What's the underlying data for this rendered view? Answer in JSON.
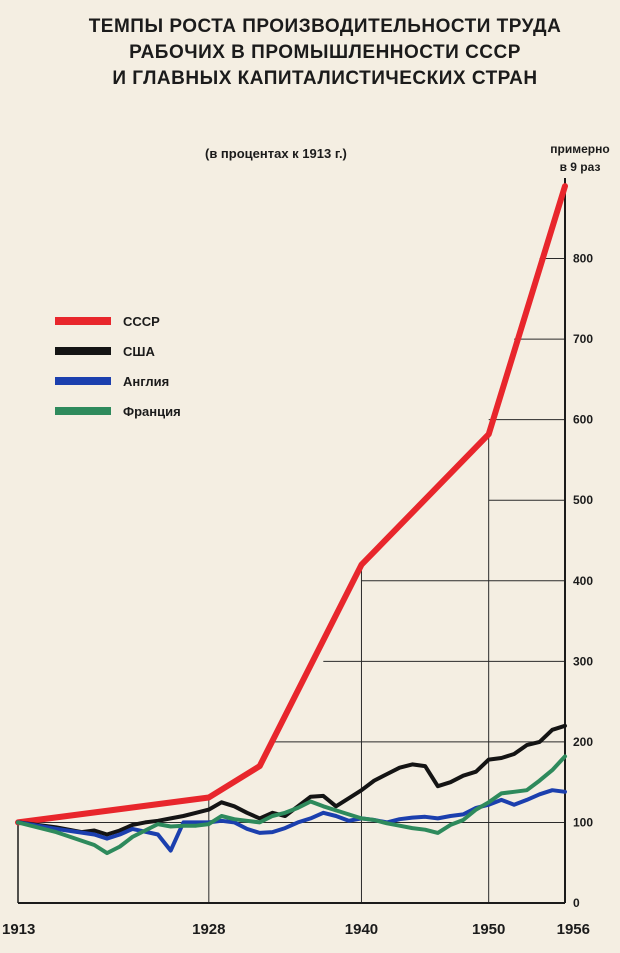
{
  "chart_data": {
    "type": "line",
    "title_lines": [
      "ТЕМПЫ РОСТА ПРОИЗВОДИТЕЛЬНОСТИ ТРУДА",
      "РАБОЧИХ В ПРОМЫШЛЕННОСТИ СССР",
      "И ГЛАВНЫХ КАПИТАЛИСТИЧЕСКИХ СТРАН"
    ],
    "subtitle": "(в процентах к 1913 г.)",
    "annotation": [
      "примерно",
      "в 9 раз"
    ],
    "xlim": [
      1913,
      1956
    ],
    "ylim": [
      0,
      900
    ],
    "x_ticks": [
      "1913",
      "1928",
      "1940",
      "1950",
      "1956"
    ],
    "y_ticks": [
      "0",
      "100",
      "200",
      "300",
      "400",
      "500",
      "600",
      "700",
      "800"
    ],
    "grid": true,
    "legend_position": "left",
    "series": [
      {
        "name": "СССР",
        "color": "#e8262c",
        "points": [
          [
            1913,
            100
          ],
          [
            1928,
            131
          ],
          [
            1932,
            170
          ],
          [
            1940,
            420
          ],
          [
            1950,
            582
          ],
          [
            1956,
            890
          ]
        ]
      },
      {
        "name": "США",
        "color": "#141414",
        "points": [
          [
            1913,
            100
          ],
          [
            1916,
            94
          ],
          [
            1918,
            88
          ],
          [
            1919,
            90
          ],
          [
            1920,
            85
          ],
          [
            1921,
            90
          ],
          [
            1922,
            97
          ],
          [
            1923,
            100
          ],
          [
            1924,
            102
          ],
          [
            1925,
            105
          ],
          [
            1926,
            108
          ],
          [
            1927,
            112
          ],
          [
            1928,
            116
          ],
          [
            1929,
            125
          ],
          [
            1930,
            120
          ],
          [
            1931,
            112
          ],
          [
            1932,
            105
          ],
          [
            1933,
            112
          ],
          [
            1934,
            108
          ],
          [
            1935,
            120
          ],
          [
            1936,
            132
          ],
          [
            1937,
            133
          ],
          [
            1938,
            120
          ],
          [
            1939,
            130
          ],
          [
            1940,
            140
          ],
          [
            1941,
            152
          ],
          [
            1942,
            160
          ],
          [
            1943,
            168
          ],
          [
            1944,
            172
          ],
          [
            1945,
            170
          ],
          [
            1946,
            145
          ],
          [
            1947,
            150
          ],
          [
            1948,
            158
          ],
          [
            1949,
            163
          ],
          [
            1950,
            178
          ],
          [
            1951,
            180
          ],
          [
            1952,
            185
          ],
          [
            1953,
            196
          ],
          [
            1954,
            200
          ],
          [
            1955,
            215
          ],
          [
            1956,
            220
          ]
        ]
      },
      {
        "name": "Англия",
        "color": "#1b3fae",
        "points": [
          [
            1913,
            100
          ],
          [
            1916,
            92
          ],
          [
            1919,
            85
          ],
          [
            1920,
            80
          ],
          [
            1921,
            85
          ],
          [
            1922,
            92
          ],
          [
            1924,
            85
          ],
          [
            1925,
            65
          ],
          [
            1926,
            100
          ],
          [
            1928,
            100
          ],
          [
            1929,
            102
          ],
          [
            1930,
            100
          ],
          [
            1931,
            92
          ],
          [
            1932,
            87
          ],
          [
            1933,
            88
          ],
          [
            1934,
            93
          ],
          [
            1935,
            100
          ],
          [
            1936,
            105
          ],
          [
            1937,
            112
          ],
          [
            1938,
            108
          ],
          [
            1939,
            102
          ],
          [
            1940,
            105
          ],
          [
            1941,
            103
          ],
          [
            1942,
            100
          ],
          [
            1943,
            104
          ],
          [
            1944,
            106
          ],
          [
            1945,
            107
          ],
          [
            1946,
            105
          ],
          [
            1947,
            108
          ],
          [
            1948,
            110
          ],
          [
            1949,
            118
          ],
          [
            1950,
            122
          ],
          [
            1951,
            128
          ],
          [
            1952,
            122
          ],
          [
            1953,
            128
          ],
          [
            1954,
            135
          ],
          [
            1955,
            140
          ],
          [
            1956,
            138
          ]
        ]
      },
      {
        "name": "Франция",
        "color": "#2e8a5c",
        "points": [
          [
            1913,
            100
          ],
          [
            1916,
            88
          ],
          [
            1919,
            72
          ],
          [
            1920,
            62
          ],
          [
            1921,
            70
          ],
          [
            1922,
            82
          ],
          [
            1924,
            98
          ],
          [
            1925,
            95
          ],
          [
            1926,
            96
          ],
          [
            1927,
            96
          ],
          [
            1928,
            98
          ],
          [
            1929,
            108
          ],
          [
            1930,
            104
          ],
          [
            1931,
            102
          ],
          [
            1932,
            100
          ],
          [
            1933,
            108
          ],
          [
            1934,
            112
          ],
          [
            1935,
            118
          ],
          [
            1936,
            126
          ],
          [
            1937,
            120
          ],
          [
            1938,
            115
          ],
          [
            1939,
            110
          ],
          [
            1940,
            105
          ],
          [
            1941,
            103
          ],
          [
            1942,
            99
          ],
          [
            1943,
            96
          ],
          [
            1944,
            93
          ],
          [
            1945,
            91
          ],
          [
            1946,
            87
          ],
          [
            1947,
            97
          ],
          [
            1948,
            103
          ],
          [
            1949,
            116
          ],
          [
            1950,
            125
          ],
          [
            1951,
            136
          ],
          [
            1952,
            138
          ],
          [
            1953,
            140
          ],
          [
            1954,
            152
          ],
          [
            1955,
            165
          ],
          [
            1956,
            182
          ]
        ]
      }
    ]
  }
}
